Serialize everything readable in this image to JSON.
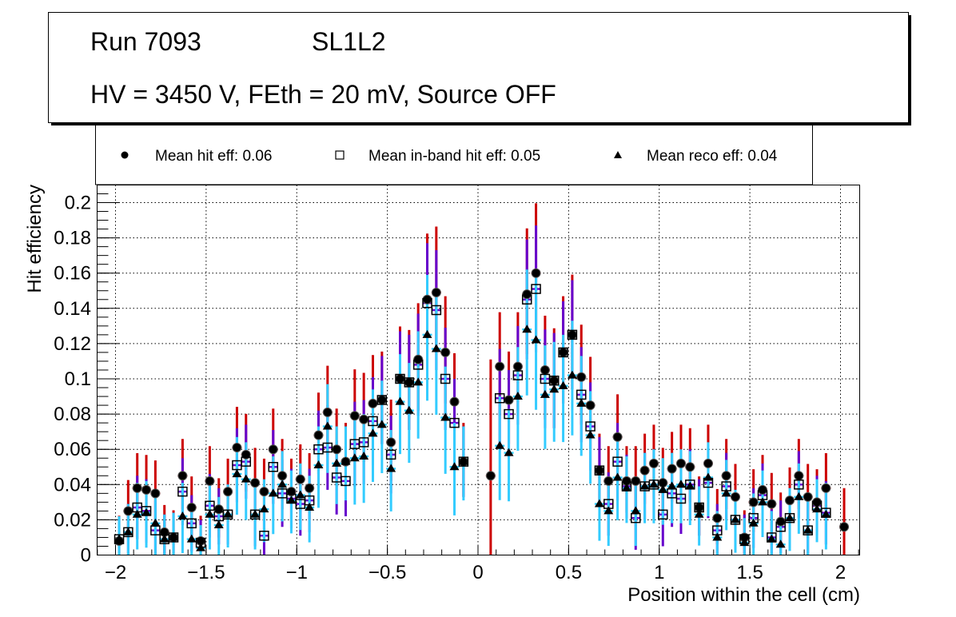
{
  "chart_data": {
    "type": "scatter",
    "title_lines": [
      {
        "run": "Run 7093",
        "layer": "SL1L2"
      },
      {
        "text": "HV = 3450 V, FEth = 20 mV, Source OFF"
      }
    ],
    "xlabel": "Position within the cell (cm)",
    "ylabel": "Hit efficiency",
    "xlim": [
      -2.1,
      2.1
    ],
    "ylim": [
      0,
      0.21
    ],
    "x_ticks": [
      -2,
      -1.5,
      -1,
      -0.5,
      0,
      0.5,
      1,
      1.5,
      2
    ],
    "x_tick_labels": [
      "−2",
      "−1.5",
      "−1",
      "−0.5",
      "0",
      "0.5",
      "1",
      "1.5",
      "2"
    ],
    "y_ticks": [
      0,
      0.02,
      0.04,
      0.06,
      0.08,
      0.1,
      0.12,
      0.14,
      0.16,
      0.18,
      0.2
    ],
    "y_tick_labels": [
      "0",
      "0.02",
      "0.04",
      "0.06",
      "0.08",
      "0.1",
      "0.12",
      "0.14",
      "0.16",
      "0.18",
      "0.2"
    ],
    "grid": true,
    "legend_position": "top",
    "legend": [
      {
        "marker": "filled-circle",
        "label": "Mean hit  eff: 0.06"
      },
      {
        "marker": "open-square",
        "label": "Mean in-band hit eff: 0.05"
      },
      {
        "marker": "filled-triangle",
        "label": "Mean reco eff: 0.04"
      }
    ],
    "x": [
      -1.98,
      -1.93,
      -1.88,
      -1.83,
      -1.78,
      -1.73,
      -1.68,
      -1.63,
      -1.58,
      -1.53,
      -1.48,
      -1.43,
      -1.38,
      -1.33,
      -1.28,
      -1.23,
      -1.18,
      -1.13,
      -1.08,
      -1.03,
      -0.98,
      -0.93,
      -0.88,
      -0.83,
      -0.78,
      -0.73,
      -0.68,
      -0.63,
      -0.58,
      -0.53,
      -0.48,
      -0.43,
      -0.38,
      -0.33,
      -0.28,
      -0.23,
      -0.18,
      -0.13,
      -0.08,
      -0.03,
      0.02,
      0.07,
      0.12,
      0.17,
      0.22,
      0.27,
      0.32,
      0.37,
      0.42,
      0.47,
      0.52,
      0.57,
      0.62,
      0.67,
      0.72,
      0.77,
      0.82,
      0.87,
      0.92,
      0.97,
      1.02,
      1.07,
      1.12,
      1.17,
      1.22,
      1.27,
      1.32,
      1.37,
      1.42,
      1.47,
      1.52,
      1.57,
      1.62,
      1.67,
      1.72,
      1.77,
      1.82,
      1.87,
      1.92,
      1.97,
      2.02
    ],
    "series": [
      {
        "name": "hit",
        "color": "#000000",
        "err_color": "#cc0000",
        "values": [
          0.008,
          0.025,
          0.038,
          0.037,
          0.035,
          0.013,
          0.01,
          0.045,
          0.027,
          0.008,
          0.042,
          0.026,
          0.036,
          0.061,
          0.057,
          0.041,
          0.036,
          0.06,
          0.045,
          0.036,
          0.043,
          0.038,
          0.068,
          0.081,
          0.06,
          0.053,
          0.079,
          0.077,
          0.086,
          0.088,
          0.064,
          0.1,
          0.098,
          0.111,
          0.145,
          0.149,
          0.115,
          0.087,
          0.053,
          null,
          null,
          0.045,
          0.107,
          0.088,
          0.107,
          0.148,
          0.16,
          0.105,
          0.099,
          0.115,
          0.125,
          0.101,
          0.085,
          0.048,
          0.042,
          0.067,
          0.042,
          0.042,
          0.048,
          0.052,
          0.041,
          0.049,
          0.052,
          0.05,
          0.027,
          0.052,
          0.021,
          0.045,
          0.033,
          0.01,
          0.03,
          0.037,
          0.029,
          0.019,
          0.031,
          0.045,
          0.033,
          0.03,
          0.038,
          null,
          0.016
        ]
      },
      {
        "name": "in-band hit",
        "color": "#000000",
        "err_color": "#6600cc",
        "values": [
          0.009,
          0.013,
          0.027,
          0.025,
          0.014,
          0.009,
          0.01,
          0.036,
          0.018,
          0.007,
          0.028,
          0.022,
          0.023,
          0.051,
          0.053,
          0.023,
          0.011,
          0.05,
          0.035,
          0.032,
          0.029,
          0.031,
          0.06,
          0.061,
          0.044,
          0.042,
          0.063,
          0.064,
          0.076,
          0.088,
          0.057,
          0.1,
          0.098,
          0.108,
          0.143,
          0.139,
          0.1,
          0.075,
          0.053,
          null,
          null,
          null,
          0.089,
          0.08,
          0.102,
          0.145,
          0.151,
          0.1,
          0.099,
          0.115,
          0.125,
          0.091,
          0.073,
          0.048,
          0.029,
          0.053,
          0.039,
          0.021,
          0.039,
          0.04,
          0.023,
          0.035,
          0.032,
          0.04,
          0.027,
          0.041,
          0.014,
          0.039,
          0.02,
          0.009,
          0.021,
          0.034,
          0.01,
          0.016,
          0.021,
          0.04,
          0.014,
          0.028,
          0.024,
          null,
          null
        ]
      },
      {
        "name": "reco",
        "color": "#000000",
        "err_color": "#33ccff",
        "values": [
          0.009,
          0.013,
          0.023,
          0.024,
          0.018,
          0.009,
          0.01,
          0.022,
          0.009,
          0.004,
          0.023,
          0.017,
          0.023,
          0.046,
          0.043,
          0.023,
          0.026,
          0.035,
          0.04,
          0.031,
          0.034,
          0.027,
          0.051,
          0.073,
          0.052,
          0.053,
          0.055,
          0.056,
          0.069,
          0.074,
          0.049,
          0.087,
          0.082,
          0.098,
          0.125,
          0.117,
          0.078,
          0.05,
          0.053,
          null,
          null,
          null,
          0.062,
          0.058,
          0.09,
          0.128,
          0.122,
          0.091,
          0.094,
          0.096,
          0.102,
          0.086,
          0.068,
          0.029,
          0.025,
          0.044,
          0.038,
          0.025,
          0.039,
          0.04,
          0.037,
          0.039,
          0.04,
          0.039,
          0.023,
          0.044,
          0.01,
          0.035,
          0.02,
          0.007,
          0.018,
          0.03,
          0.009,
          0.006,
          0.021,
          0.033,
          0.014,
          0.026,
          0.023,
          null,
          null
        ]
      }
    ],
    "errors": [
      0.013,
      0.016,
      0.018,
      0.018,
      0.017,
      0.014,
      0.014,
      0.019,
      0.016,
      0.013,
      0.018,
      0.016,
      0.017,
      0.021,
      0.021,
      0.018,
      0.017,
      0.021,
      0.019,
      0.017,
      0.018,
      0.018,
      0.022,
      0.024,
      0.021,
      0.02,
      0.024,
      0.024,
      0.025,
      0.025,
      0.022,
      0.027,
      0.027,
      0.029,
      0.034,
      0.034,
      0.029,
      0.025,
      0.02,
      null,
      null,
      0.06,
      0.028,
      0.025,
      0.028,
      0.034,
      0.036,
      0.028,
      0.027,
      0.029,
      0.031,
      0.027,
      0.025,
      0.019,
      0.018,
      0.022,
      0.018,
      0.018,
      0.019,
      0.02,
      0.018,
      0.019,
      0.02,
      0.02,
      0.016,
      0.02,
      0.015,
      0.019,
      0.017,
      0.014,
      0.017,
      0.018,
      0.016,
      0.015,
      0.017,
      0.019,
      0.017,
      0.017,
      0.018,
      null,
      0.02
    ]
  }
}
